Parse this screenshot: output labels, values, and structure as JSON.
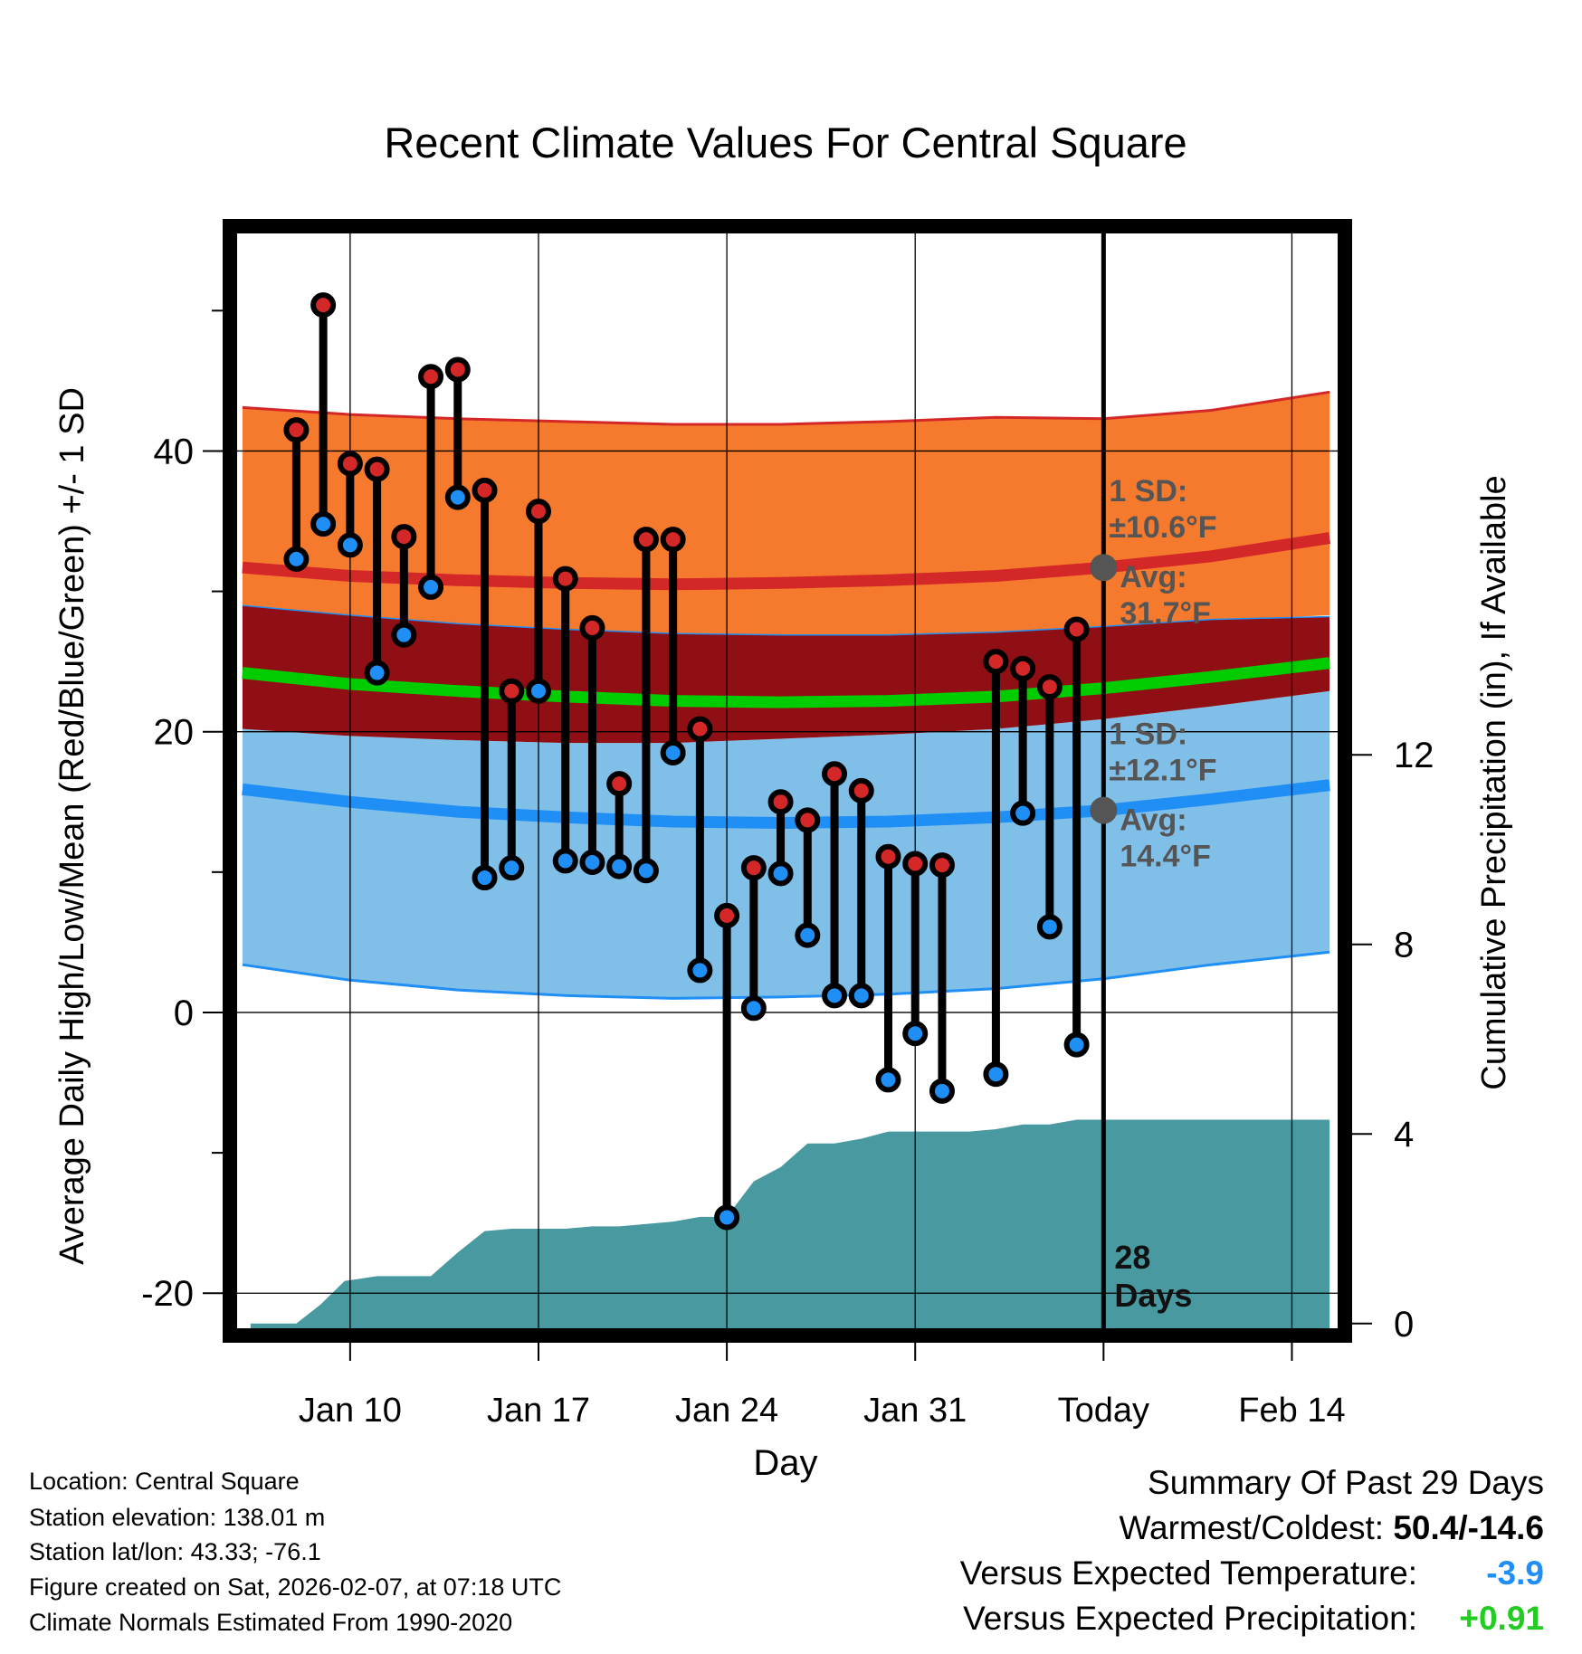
{
  "chart_data": {
    "type": "line",
    "title": "Recent Climate Values For Central Square",
    "xlabel": "Day",
    "ylabel": "Average Daily High/Low/Mean (Red/Blue/Green) +/- 1 SD",
    "y2label": "Cumulative Precipitation (in), If Available",
    "ylim": [
      -22.5,
      55.5
    ],
    "y2lim": [
      -0.1,
      23
    ],
    "xlim": [
      5.8,
      46.7
    ],
    "grid": true,
    "x_ticks": [
      {
        "x": 10,
        "label": "Jan 10"
      },
      {
        "x": 17,
        "label": "Jan 17"
      },
      {
        "x": 24,
        "label": "Jan 24"
      },
      {
        "x": 31,
        "label": "Jan 31"
      },
      {
        "x": 38,
        "label": "Today"
      },
      {
        "x": 45,
        "label": "Feb 14"
      }
    ],
    "y_ticks": [
      -20,
      0,
      20,
      40
    ],
    "y2_ticks": [
      0,
      4,
      8,
      12
    ],
    "normals_x": [
      6,
      10,
      14,
      18,
      22,
      26,
      30,
      34,
      38,
      42,
      46.4
    ],
    "normal_high": [
      31.7,
      31.1,
      30.8,
      30.6,
      30.5,
      30.6,
      30.8,
      31.1,
      31.7,
      32.5,
      33.8
    ],
    "normal_high_upper": [
      43.1,
      42.6,
      42.3,
      42.1,
      41.9,
      41.9,
      42.1,
      42.4,
      42.3,
      42.9,
      44.2
    ],
    "normal_high_lower": [
      28.8,
      27.8,
      27.2,
      26.8,
      26.6,
      26.5,
      26.4,
      26.6,
      27.1,
      27.9,
      28.3
    ],
    "normal_mean": [
      24.2,
      23.4,
      22.9,
      22.5,
      22.2,
      22.1,
      22.2,
      22.5,
      23.1,
      23.9,
      24.9
    ],
    "normal_mean_upper": [
      29.0,
      28.3,
      27.7,
      27.3,
      27.0,
      26.9,
      26.9,
      27.1,
      27.5,
      28.0,
      28.2
    ],
    "normal_mean_lower": [
      20.2,
      19.7,
      19.4,
      19.2,
      19.2,
      19.5,
      19.8,
      20.2,
      20.9,
      21.8,
      22.9
    ],
    "normal_low": [
      15.9,
      15.0,
      14.3,
      13.9,
      13.6,
      13.5,
      13.6,
      13.9,
      14.4,
      15.2,
      16.2
    ],
    "normal_low_upper": [
      20.2,
      19.7,
      19.4,
      19.2,
      19.2,
      19.5,
      19.8,
      20.2,
      20.9,
      21.8,
      22.9
    ],
    "normal_low_lower": [
      3.4,
      2.3,
      1.6,
      1.2,
      1.0,
      1.1,
      1.3,
      1.7,
      2.4,
      3.4,
      4.3
    ],
    "daily_x": [
      8,
      9,
      10,
      11,
      12,
      13,
      14,
      15,
      16,
      17,
      18,
      19,
      20,
      21,
      22,
      23,
      24,
      25,
      26,
      27,
      28,
      29,
      30,
      31,
      32,
      33,
      34,
      35,
      36,
      37
    ],
    "daily_high": [
      41.5,
      50.4,
      39.1,
      38.7,
      33.9,
      45.3,
      45.8,
      37.2,
      22.9,
      35.7,
      30.9,
      27.4,
      16.3,
      33.7,
      33.7,
      20.2,
      6.9,
      10.3,
      15.0,
      13.7,
      17.0,
      15.8,
      11.1,
      10.6,
      10.5,
      null,
      25.0,
      24.5,
      23.2,
      27.3
    ],
    "daily_low": [
      32.3,
      34.8,
      33.3,
      24.2,
      26.9,
      30.3,
      36.7,
      9.6,
      10.3,
      22.9,
      10.8,
      10.7,
      10.4,
      10.1,
      18.5,
      3.0,
      -14.6,
      0.3,
      9.9,
      5.5,
      1.2,
      1.2,
      -4.8,
      -1.5,
      -5.6,
      null,
      -4.4,
      14.2,
      6.1,
      -2.3
    ],
    "precip_x": [
      6.3,
      8.0,
      8.9,
      9.8,
      10.2,
      11.0,
      12.0,
      13.0,
      14.0,
      15.0,
      16.0,
      17.0,
      18.0,
      19.0,
      20.0,
      21.0,
      22.0,
      23.0,
      24.0,
      25.0,
      26.0,
      27.0,
      28.0,
      29.0,
      30.0,
      31.0,
      32.0,
      33.0,
      34.0,
      35.0,
      36.0,
      37.0,
      46.4
    ],
    "precip_cum": [
      0.0,
      0.0,
      0.4,
      0.9,
      0.93,
      1.0,
      1.0,
      1.0,
      1.5,
      1.95,
      2.0,
      2.0,
      2.0,
      2.05,
      2.05,
      2.1,
      2.15,
      2.25,
      2.25,
      3.0,
      3.3,
      3.8,
      3.8,
      3.9,
      4.05,
      4.05,
      4.05,
      4.05,
      4.1,
      4.2,
      4.2,
      4.3,
      4.3
    ],
    "today_x": 38,
    "today_days_label_1": "28",
    "today_days_label_2": "Days",
    "annot_high": {
      "sd_label": "1 SD:",
      "sd_value": "±10.6°F",
      "avg_label": "Avg:",
      "avg_value": "31.7°F",
      "avg": 31.7
    },
    "annot_low": {
      "sd_label": "1 SD:",
      "sd_value": "±12.1°F",
      "avg_label": "Avg:",
      "avg_value": "14.4°F",
      "avg": 14.4
    },
    "colors": {
      "high_band": "#f57a2e",
      "high_line": "#d42727",
      "mean_band": "#8f0f14",
      "mean_line": "#00cc00",
      "low_band": "#80c0e8",
      "low_line": "#1f8ef5",
      "precip": "#4899a0",
      "high_dot": "#d42727",
      "low_dot": "#1f8ef5",
      "annotation": "#555555"
    }
  },
  "info": {
    "location": "Location: Central Square",
    "elevation": "Station elevation: 138.01 m",
    "latlon": "Station lat/lon: 43.33; -76.1",
    "created": "Figure created on Sat, 2026-02-07, at 07:18 UTC",
    "normals": "Climate Normals Estimated From 1990-2020"
  },
  "summary": {
    "title": "Summary Of Past 29 Days",
    "warm_cold_label": "Warmest/Coldest: ",
    "warm_cold_value": "50.4/-14.6",
    "temp_label": "Versus Expected Temperature:",
    "temp_value": "-3.9",
    "temp_color": "#1f8ef5",
    "precip_label": "Versus Expected Precipitation:",
    "precip_value": "+0.91",
    "precip_color": "#22cc22"
  }
}
